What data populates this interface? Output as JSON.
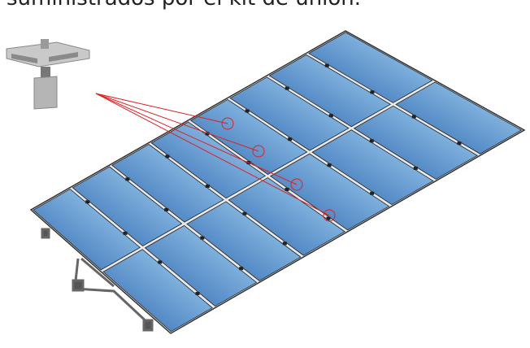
{
  "caption": "suministrados por el kit de unión."
}
